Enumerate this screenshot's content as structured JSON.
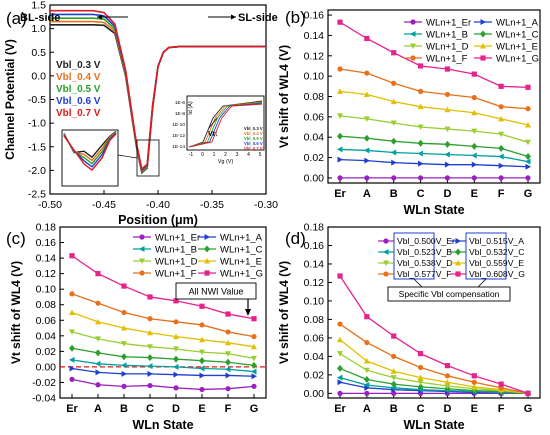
{
  "chart_data": [
    {
      "panel_label": "(a)",
      "type": "line",
      "xlabel": "Position (μm)",
      "ylabel": "Channel Potential (V)",
      "xlim": [
        -0.5,
        -0.3
      ],
      "ylim": [
        -2.5,
        1.5
      ],
      "x_ticks": [
        "-0.50",
        "-0.45",
        "-0.40",
        "-0.35",
        "-0.30"
      ],
      "y_ticks": [
        "-2.5",
        "-2.0",
        "-1.5",
        "-1.0",
        "-0.5",
        "0.0",
        "0.5",
        "1.0",
        "1.5"
      ],
      "annotations": {
        "left_arrow": "BL-side",
        "right_arrow": "SL-side"
      },
      "series": [
        {
          "name": "Vbl_0.3 V",
          "color": "#222222",
          "x": [
            -0.5,
            -0.46,
            -0.45,
            -0.44,
            -0.43,
            -0.42,
            -0.415,
            -0.41,
            -0.405,
            -0.4,
            -0.395,
            -0.39,
            -0.385,
            -0.38,
            -0.37,
            -0.3
          ],
          "y": [
            1.08,
            1.08,
            1.07,
            0.9,
            0.0,
            -1.5,
            -2.05,
            -1.95,
            -0.7,
            0.2,
            0.5,
            0.6,
            0.61,
            0.62,
            0.62,
            0.62
          ]
        },
        {
          "name": "Vbl_0.4 V",
          "color": "#e8701a",
          "x": [
            -0.5,
            -0.46,
            -0.45,
            -0.44,
            -0.43,
            -0.42,
            -0.415,
            -0.41,
            -0.405,
            -0.4,
            -0.395,
            -0.39,
            -0.385,
            -0.38,
            -0.37,
            -0.3
          ],
          "y": [
            1.15,
            1.15,
            1.13,
            0.95,
            0.03,
            -1.48,
            -2.03,
            -1.93,
            -0.68,
            0.2,
            0.5,
            0.6,
            0.61,
            0.62,
            0.62,
            0.62
          ]
        },
        {
          "name": "Vbl_0.5 V",
          "color": "#2ca02c",
          "x": [
            -0.5,
            -0.46,
            -0.45,
            -0.44,
            -0.43,
            -0.42,
            -0.415,
            -0.41,
            -0.405,
            -0.4,
            -0.395,
            -0.39,
            -0.385,
            -0.38,
            -0.37,
            -0.3
          ],
          "y": [
            1.22,
            1.22,
            1.2,
            1.0,
            0.06,
            -1.46,
            -2.01,
            -1.91,
            -0.66,
            0.2,
            0.5,
            0.6,
            0.61,
            0.62,
            0.62,
            0.62
          ]
        },
        {
          "name": "Vbl_0.6 V",
          "color": "#1f3fd0",
          "x": [
            -0.5,
            -0.46,
            -0.45,
            -0.44,
            -0.43,
            -0.42,
            -0.415,
            -0.41,
            -0.405,
            -0.4,
            -0.395,
            -0.39,
            -0.385,
            -0.38,
            -0.37,
            -0.3
          ],
          "y": [
            1.3,
            1.3,
            1.27,
            1.05,
            0.09,
            -1.44,
            -1.99,
            -1.89,
            -0.64,
            0.2,
            0.5,
            0.6,
            0.61,
            0.62,
            0.62,
            0.62
          ]
        },
        {
          "name": "Vbl_0.7 V",
          "color": "#e31a1c",
          "x": [
            -0.5,
            -0.46,
            -0.45,
            -0.44,
            -0.43,
            -0.42,
            -0.415,
            -0.41,
            -0.405,
            -0.4,
            -0.395,
            -0.39,
            -0.385,
            -0.38,
            -0.37,
            -0.3
          ],
          "y": [
            1.38,
            1.38,
            1.34,
            1.1,
            0.12,
            -1.42,
            -1.97,
            -1.87,
            -0.62,
            0.2,
            0.5,
            0.6,
            0.61,
            0.62,
            0.62,
            0.62
          ]
        }
      ],
      "inset": {
        "xlabel": "Vg (V)",
        "ylabel": "Id (A)",
        "x_ticks": [
          "-1",
          "0",
          "1",
          "2",
          "3",
          "4",
          "5"
        ],
        "y_ticks": [
          "1E-6",
          "1E-8",
          "1E-10",
          "1E-12",
          "1E-14"
        ],
        "annotation": "Vt↓",
        "legend": [
          "Vbl_0.3 V",
          "Vbl_0.4 V",
          "Vbl_0.5 V",
          "Vbl_0.6 V",
          "Vbl_0.7 V"
        ]
      }
    },
    {
      "panel_label": "(b)",
      "type": "line",
      "xlabel": "WLn State",
      "ylabel": "Vt shift of WL4 (V)",
      "categories": [
        "Er",
        "A",
        "B",
        "C",
        "D",
        "E",
        "F",
        "G"
      ],
      "ylim": [
        -0.005,
        0.165
      ],
      "y_ticks": [
        "0.00",
        "0.02",
        "0.04",
        "0.06",
        "0.08",
        "0.10",
        "0.12",
        "0.14",
        "0.16"
      ],
      "series": [
        {
          "name": "WLn+1_Er",
          "color": "#9c1fbf",
          "marker": "circle",
          "values": [
            0.0,
            0.0,
            0.0,
            0.0,
            0.0,
            0.0,
            0.0,
            0.0
          ]
        },
        {
          "name": "WLn+1_A",
          "color": "#1f3fd0",
          "marker": "triangle-right",
          "values": [
            0.018,
            0.017,
            0.015,
            0.014,
            0.013,
            0.013,
            0.012,
            0.011
          ]
        },
        {
          "name": "WLn+1_B",
          "color": "#00a0a0",
          "marker": "triangle-left",
          "values": [
            0.028,
            0.027,
            0.025,
            0.024,
            0.023,
            0.022,
            0.021,
            0.016
          ]
        },
        {
          "name": "WLn+1_C",
          "color": "#2ca02c",
          "marker": "diamond",
          "values": [
            0.041,
            0.039,
            0.036,
            0.034,
            0.033,
            0.031,
            0.029,
            0.021
          ]
        },
        {
          "name": "WLn+1_D",
          "color": "#9acd32",
          "marker": "triangle-down",
          "values": [
            0.061,
            0.058,
            0.054,
            0.05,
            0.048,
            0.046,
            0.043,
            0.035
          ]
        },
        {
          "name": "WLn+1_E",
          "color": "#e0c000",
          "marker": "triangle-up",
          "values": [
            0.085,
            0.082,
            0.075,
            0.07,
            0.067,
            0.064,
            0.058,
            0.052
          ]
        },
        {
          "name": "WLn+1_F",
          "color": "#e8701a",
          "marker": "circle",
          "values": [
            0.107,
            0.103,
            0.093,
            0.085,
            0.082,
            0.079,
            0.07,
            0.068
          ]
        },
        {
          "name": "WLn+1_G",
          "color": "#e6228c",
          "marker": "square",
          "values": [
            0.153,
            0.137,
            0.123,
            0.11,
            0.107,
            0.102,
            0.09,
            0.089
          ]
        }
      ]
    },
    {
      "panel_label": "(c)",
      "type": "line",
      "xlabel": "WLn State",
      "ylabel": "Vt shift of WL4 (V)",
      "categories": [
        "Er",
        "A",
        "B",
        "C",
        "D",
        "E",
        "F",
        "G"
      ],
      "ylim": [
        -0.04,
        0.18
      ],
      "y_ticks": [
        "-0.04",
        "-0.02",
        "0.00",
        "0.02",
        "0.04",
        "0.06",
        "0.08",
        "0.10",
        "0.12",
        "0.14",
        "0.16",
        "0.18"
      ],
      "reference_line": 0.0,
      "annotation": "All NWI Value",
      "series": [
        {
          "name": "WLn+1_Er",
          "color": "#9c1fbf",
          "marker": "circle",
          "values": [
            -0.016,
            -0.023,
            -0.025,
            -0.024,
            -0.027,
            -0.029,
            -0.028,
            -0.025
          ]
        },
        {
          "name": "WLn+1_A",
          "color": "#1f3fd0",
          "marker": "triangle-right",
          "values": [
            -0.002,
            -0.007,
            -0.009,
            -0.009,
            -0.01,
            -0.011,
            -0.011,
            -0.012
          ]
        },
        {
          "name": "WLn+1_B",
          "color": "#00a0a0",
          "marker": "triangle-left",
          "values": [
            0.009,
            0.004,
            0.002,
            0.001,
            0.0,
            -0.002,
            -0.003,
            -0.006
          ]
        },
        {
          "name": "WLn+1_C",
          "color": "#2ca02c",
          "marker": "diamond",
          "values": [
            0.024,
            0.018,
            0.013,
            0.012,
            0.01,
            0.008,
            0.006,
            0.002
          ]
        },
        {
          "name": "WLn+1_D",
          "color": "#9acd32",
          "marker": "triangle-down",
          "values": [
            0.045,
            0.036,
            0.03,
            0.026,
            0.023,
            0.019,
            0.017,
            0.011
          ]
        },
        {
          "name": "WLn+1_E",
          "color": "#e0c000",
          "marker": "triangle-up",
          "values": [
            0.07,
            0.058,
            0.05,
            0.044,
            0.039,
            0.035,
            0.031,
            0.026
          ]
        },
        {
          "name": "WLn+1_F",
          "color": "#e8701a",
          "marker": "circle",
          "values": [
            0.094,
            0.082,
            0.07,
            0.062,
            0.058,
            0.054,
            0.045,
            0.039
          ]
        },
        {
          "name": "WLn+1_G",
          "color": "#e6228c",
          "marker": "square",
          "values": [
            0.143,
            0.12,
            0.104,
            0.09,
            0.085,
            0.078,
            0.068,
            0.062
          ]
        }
      ]
    },
    {
      "panel_label": "(d)",
      "type": "line",
      "xlabel": "WLn State",
      "ylabel": "Vt shift of WL4 (V)",
      "categories": [
        "Er",
        "A",
        "B",
        "C",
        "D",
        "E",
        "F",
        "G"
      ],
      "ylim": [
        -0.005,
        0.18
      ],
      "y_ticks": [
        "0.00",
        "0.02",
        "0.04",
        "0.06",
        "0.08",
        "0.10",
        "0.12",
        "0.14",
        "0.16",
        "0.18"
      ],
      "annotation": "Specific Vbl compensation",
      "series": [
        {
          "name": "Vbl_0.500V_Er",
          "color": "#9c1fbf",
          "marker": "circle",
          "values": [
            0.0,
            0.0,
            0.0,
            0.0,
            0.0,
            0.0,
            0.0,
            0.0
          ]
        },
        {
          "name": "Vbl_0.515V_A",
          "color": "#1f3fd0",
          "marker": "triangle-right",
          "values": [
            0.012,
            0.006,
            0.004,
            0.003,
            0.002,
            0.001,
            0.001,
            0.0
          ]
        },
        {
          "name": "Vbl_0.523V_B",
          "color": "#00a0a0",
          "marker": "triangle-left",
          "values": [
            0.017,
            0.009,
            0.006,
            0.004,
            0.003,
            0.002,
            0.001,
            0.0
          ]
        },
        {
          "name": "Vbl_0.532V_C",
          "color": "#2ca02c",
          "marker": "diamond",
          "values": [
            0.027,
            0.015,
            0.01,
            0.007,
            0.005,
            0.003,
            0.002,
            0.0
          ]
        },
        {
          "name": "Vbl_0.538V_D",
          "color": "#9acd32",
          "marker": "triangle-down",
          "values": [
            0.043,
            0.025,
            0.017,
            0.012,
            0.008,
            0.005,
            0.003,
            0.0
          ]
        },
        {
          "name": "Vbl_0.559V_E",
          "color": "#e0c000",
          "marker": "triangle-up",
          "values": [
            0.058,
            0.035,
            0.024,
            0.017,
            0.012,
            0.007,
            0.004,
            0.0
          ]
        },
        {
          "name": "Vbl_0.577V_F",
          "color": "#e8701a",
          "marker": "circle",
          "values": [
            0.075,
            0.055,
            0.04,
            0.028,
            0.019,
            0.012,
            0.006,
            0.0
          ]
        },
        {
          "name": "Vbl_0.608V_G",
          "color": "#e6228c",
          "marker": "square",
          "values": [
            0.127,
            0.083,
            0.062,
            0.043,
            0.03,
            0.019,
            0.01,
            0.0
          ]
        }
      ]
    }
  ]
}
